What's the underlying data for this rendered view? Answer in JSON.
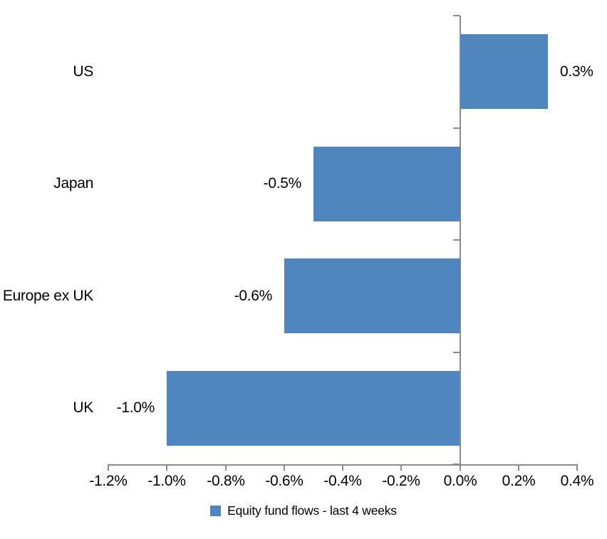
{
  "chart_data": {
    "type": "bar",
    "orientation": "horizontal",
    "title": "",
    "categories": [
      "US",
      "Japan",
      "Europe ex UK",
      "UK"
    ],
    "values": [
      0.3,
      -0.5,
      -0.6,
      -1.0
    ],
    "data_labels": [
      "0.3%",
      "-0.5%",
      "-0.6%",
      "-1.0%"
    ],
    "series": [
      {
        "name": "Equity fund flows - last 4 weeks",
        "values": [
          0.3,
          -0.5,
          -0.6,
          -1.0
        ]
      }
    ],
    "legend_label": "Equity fund flows - last 4 weeks",
    "legend_position": "bottom-center",
    "xlabel": "",
    "ylabel": "",
    "xlim": [
      -1.2,
      0.4
    ],
    "x_ticks": [
      {
        "value": -1.2,
        "label": "-1.2%"
      },
      {
        "value": -1.0,
        "label": "-1.0%"
      },
      {
        "value": -0.8,
        "label": "-0.8%"
      },
      {
        "value": -0.6,
        "label": "-0.6%"
      },
      {
        "value": -0.4,
        "label": "-0.4%"
      },
      {
        "value": -0.2,
        "label": "-0.2%"
      },
      {
        "value": 0.0,
        "label": "0.0%"
      },
      {
        "value": 0.2,
        "label": "0.2%"
      },
      {
        "value": 0.4,
        "label": "0.4%"
      }
    ],
    "grid": false,
    "bar_color": "#4E86BD",
    "axis_color": "#8C8C8C",
    "label_color": "#000000"
  }
}
